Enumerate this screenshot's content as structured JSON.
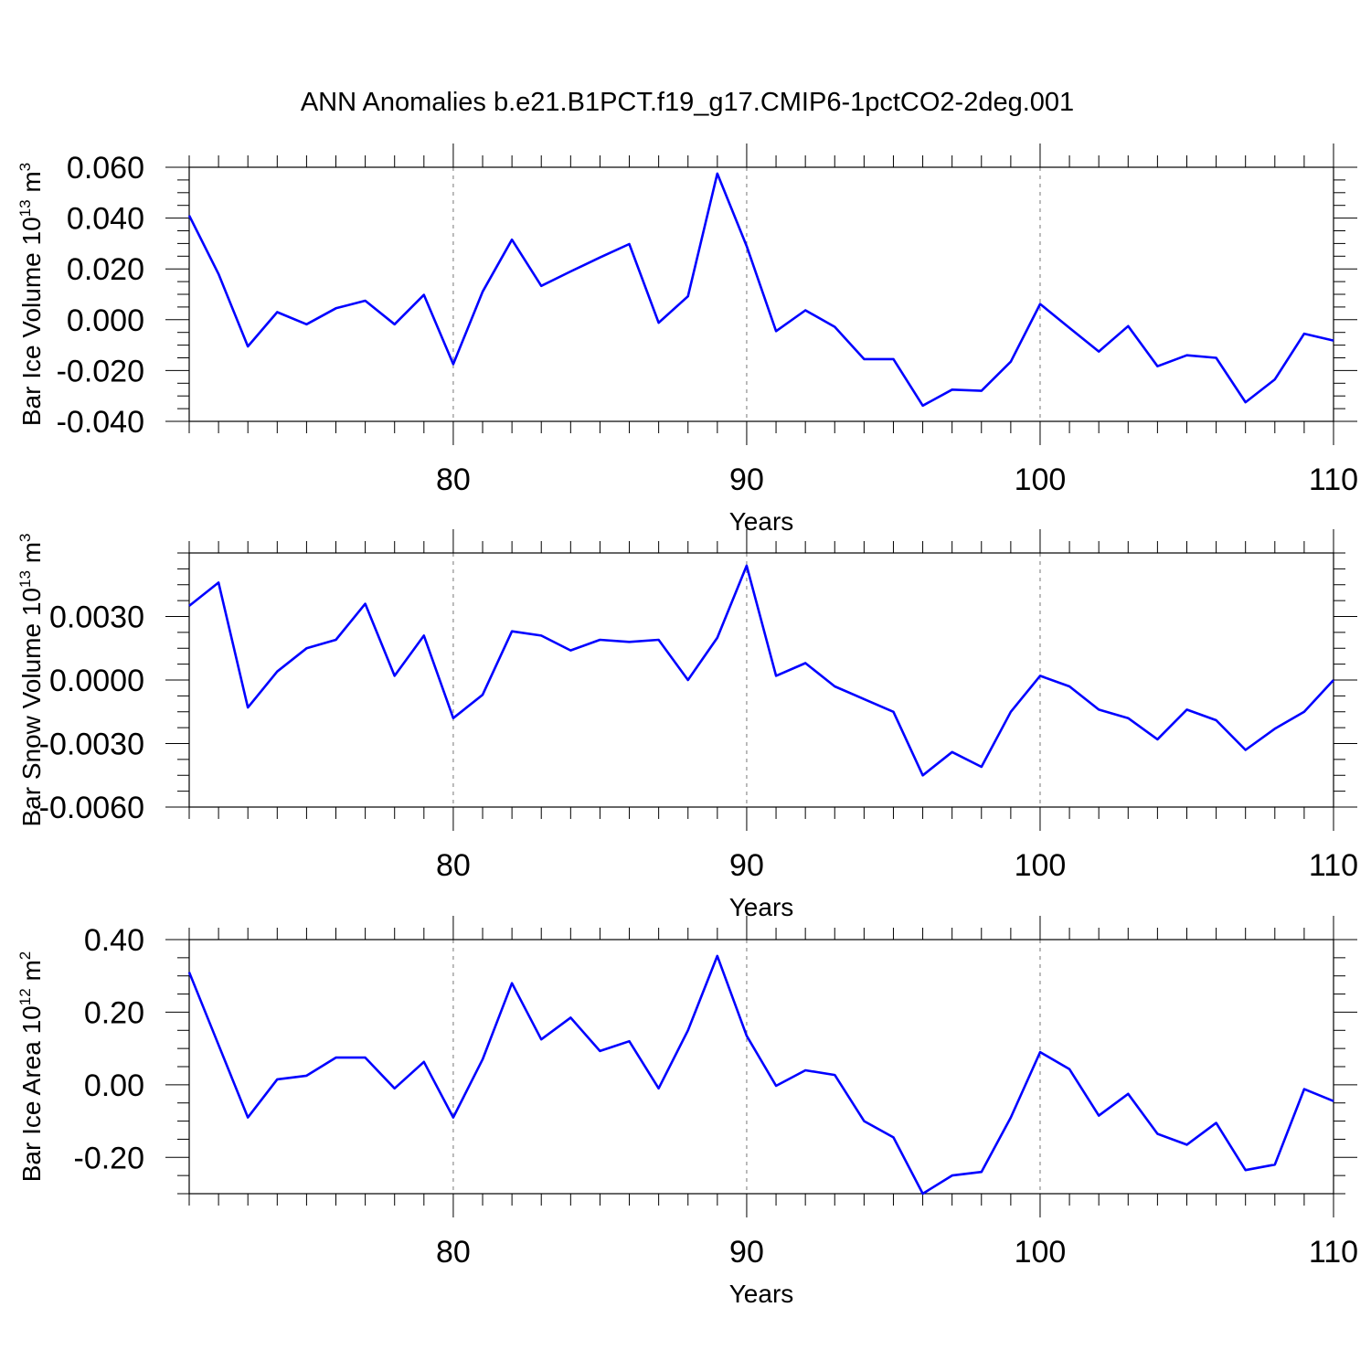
{
  "title": "ANN Anomalies b.e21.B1PCT.f19_g17.CMIP6-1pctCO2-2deg.001",
  "line_color": "#0000ff",
  "grid": "dashed vertical at major x ticks",
  "chart_data": [
    {
      "type": "line",
      "xlabel": "Years",
      "ylabel_main": "Bar Ice Volume 10",
      "ylabel_exp": "13",
      "ylabel_unit": " m",
      "ylabel_unit_exp": "3",
      "xlim": [
        71,
        110
      ],
      "ylim": [
        -0.04,
        0.06
      ],
      "xticks": [
        80,
        90,
        100,
        110
      ],
      "xticklabels": [
        "80",
        "90",
        "100",
        "110"
      ],
      "yticks": [
        -0.04,
        -0.02,
        0.0,
        0.02,
        0.04,
        0.06
      ],
      "yticklabels": [
        "-0.040",
        "-0.020",
        "0.000",
        "0.020",
        "0.040",
        "0.060"
      ],
      "x": [
        71,
        72,
        73,
        74,
        75,
        76,
        77,
        78,
        79,
        80,
        81,
        82,
        83,
        84,
        85,
        86,
        87,
        88,
        89,
        90,
        91,
        92,
        93,
        94,
        95,
        96,
        97,
        98,
        99,
        100,
        101,
        102,
        103,
        104,
        105,
        106,
        107,
        108,
        109,
        110
      ],
      "values": [
        0.041,
        0.018,
        -0.0105,
        0.003,
        -0.0018,
        0.0045,
        0.0075,
        -0.0018,
        0.0098,
        -0.0175,
        0.011,
        0.0315,
        0.0133,
        0.019,
        0.0245,
        0.0298,
        -0.0012,
        0.0092,
        0.0575,
        0.029,
        -0.0045,
        0.0037,
        -0.0028,
        -0.0155,
        -0.0155,
        -0.0338,
        -0.0275,
        -0.028,
        -0.0165,
        0.0062,
        -0.0032,
        -0.0125,
        -0.0025,
        -0.0183,
        -0.014,
        -0.015,
        -0.0325,
        -0.0235,
        -0.0055,
        -0.0082
      ]
    },
    {
      "type": "line",
      "xlabel": "Years",
      "ylabel_main": "Bar Snow Volume 10",
      "ylabel_exp": "13",
      "ylabel_unit": " m",
      "ylabel_unit_exp": "3",
      "xlim": [
        71,
        110
      ],
      "ylim": [
        -0.006,
        0.006
      ],
      "xticks": [
        80,
        90,
        100,
        110
      ],
      "xticklabels": [
        "80",
        "90",
        "100",
        "110"
      ],
      "yticks": [
        -0.006,
        -0.003,
        0.0,
        0.003
      ],
      "yticklabels": [
        "-0.0060",
        "-0.0030",
        "0.0000",
        "0.0030"
      ],
      "x": [
        71,
        72,
        73,
        74,
        75,
        76,
        77,
        78,
        79,
        80,
        81,
        82,
        83,
        84,
        85,
        86,
        87,
        88,
        89,
        90,
        91,
        92,
        93,
        94,
        95,
        96,
        97,
        98,
        99,
        100,
        101,
        102,
        103,
        104,
        105,
        106,
        107,
        108,
        109,
        110
      ],
      "values": [
        0.0035,
        0.0046,
        -0.0013,
        0.0004,
        0.0015,
        0.0019,
        0.0036,
        0.0002,
        0.0021,
        -0.0018,
        -0.0007,
        0.0023,
        0.0021,
        0.0014,
        0.0019,
        0.0018,
        0.0019,
        0.0,
        0.002,
        0.0054,
        0.0002,
        0.0008,
        -0.0003,
        -0.0009,
        -0.0015,
        -0.0045,
        -0.0034,
        -0.0041,
        -0.0015,
        0.0002,
        -0.0003,
        -0.0014,
        -0.0018,
        -0.0028,
        -0.0014,
        -0.0019,
        -0.0033,
        -0.0023,
        -0.0015,
        0.0
      ]
    },
    {
      "type": "line",
      "xlabel": "Years",
      "ylabel_main": "Bar Ice Area 10",
      "ylabel_exp": "12",
      "ylabel_unit": " m",
      "ylabel_unit_exp": "2",
      "xlim": [
        71,
        110
      ],
      "ylim": [
        -0.3,
        0.4
      ],
      "xticks": [
        80,
        90,
        100,
        110
      ],
      "xticklabels": [
        "80",
        "90",
        "100",
        "110"
      ],
      "yticks": [
        -0.2,
        0.0,
        0.2,
        0.4
      ],
      "yticklabels": [
        "-0.20",
        "0.00",
        "0.20",
        "0.40"
      ],
      "x": [
        71,
        72,
        73,
        74,
        75,
        76,
        77,
        78,
        79,
        80,
        81,
        82,
        83,
        84,
        85,
        86,
        87,
        88,
        89,
        90,
        91,
        92,
        93,
        94,
        95,
        96,
        97,
        98,
        99,
        100,
        101,
        102,
        103,
        104,
        105,
        106,
        107,
        108,
        109,
        110
      ],
      "values": [
        0.31,
        0.11,
        -0.09,
        0.015,
        0.025,
        0.075,
        0.075,
        -0.01,
        0.063,
        -0.09,
        0.07,
        0.28,
        0.125,
        0.185,
        0.093,
        0.12,
        -0.01,
        0.15,
        0.355,
        0.135,
        -0.003,
        0.04,
        0.027,
        -0.1,
        -0.145,
        -0.3,
        -0.25,
        -0.24,
        -0.09,
        0.09,
        0.043,
        -0.085,
        -0.025,
        -0.135,
        -0.165,
        -0.105,
        -0.235,
        -0.22,
        -0.012,
        -0.045
      ]
    }
  ]
}
